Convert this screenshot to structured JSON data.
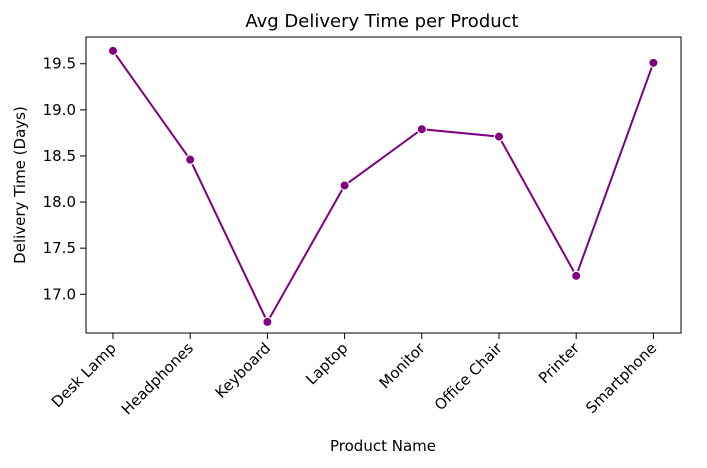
{
  "chart_data": {
    "type": "line",
    "title": "Avg Delivery Time per Product",
    "xlabel": "Product Name",
    "ylabel": "Delivery Time (Days)",
    "categories": [
      "Desk Lamp",
      "Headphones",
      "Keyboard",
      "Laptop",
      "Monitor",
      "Office Chair",
      "Printer",
      "Smartphone"
    ],
    "values": [
      19.64,
      18.46,
      16.7,
      18.18,
      18.79,
      18.71,
      17.2,
      19.51
    ],
    "yticks": [
      "17.0",
      "17.5",
      "18.0",
      "18.5",
      "19.0",
      "19.5"
    ],
    "ylim": [
      16.58,
      19.79
    ],
    "grid": false,
    "legend": "none",
    "colors": {
      "line": "#800080",
      "marker": "#800080",
      "axis": "#000000"
    }
  }
}
